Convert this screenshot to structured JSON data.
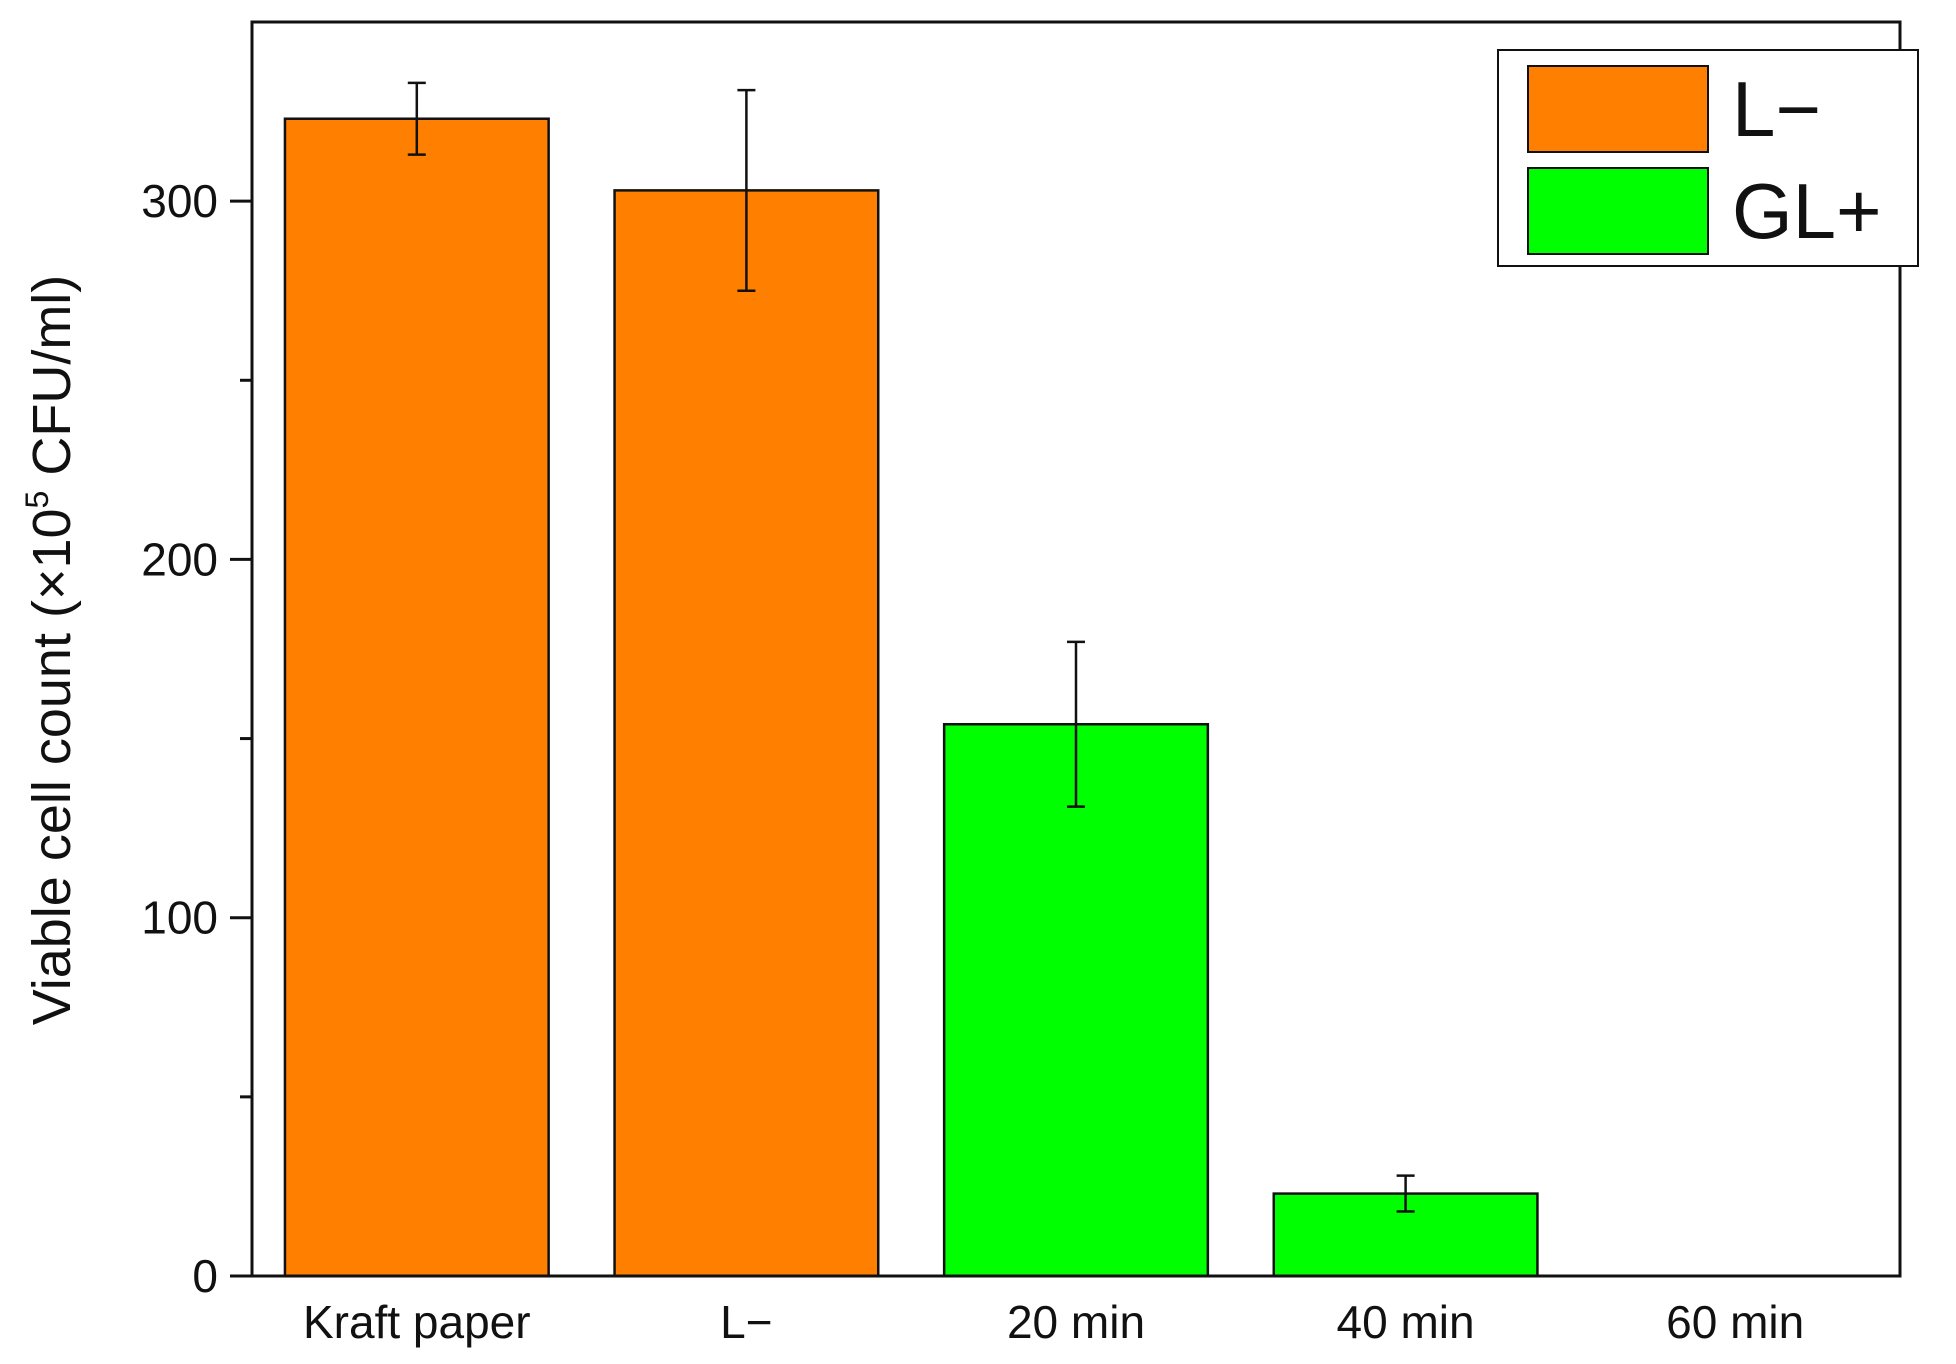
{
  "chart_data": {
    "type": "bar",
    "categories": [
      "Kraft paper",
      "L−",
      "20 min",
      "40 min",
      "60 min"
    ],
    "values": [
      323,
      303,
      154,
      23,
      0
    ],
    "errors": [
      10,
      28,
      23,
      5,
      0
    ],
    "bar_series": [
      "L−",
      "L−",
      "GL+",
      "GL+",
      "GL+"
    ],
    "ylabel": {
      "main": "Viable cell count (×10",
      "sup": "5",
      "rest": " CFU/ml)"
    },
    "ylim": [
      0,
      350
    ],
    "yticks": [
      0,
      100,
      200,
      300
    ],
    "yticks_minor": [
      50,
      150,
      250
    ],
    "legend": {
      "position": "top-right",
      "items": [
        {
          "name": "L−",
          "color": "#ff8000"
        },
        {
          "name": "GL+",
          "color": "#00ff00"
        }
      ]
    },
    "grid": false,
    "colors": {
      "L−": "#ff8000",
      "GL+": "#00ff00"
    }
  }
}
